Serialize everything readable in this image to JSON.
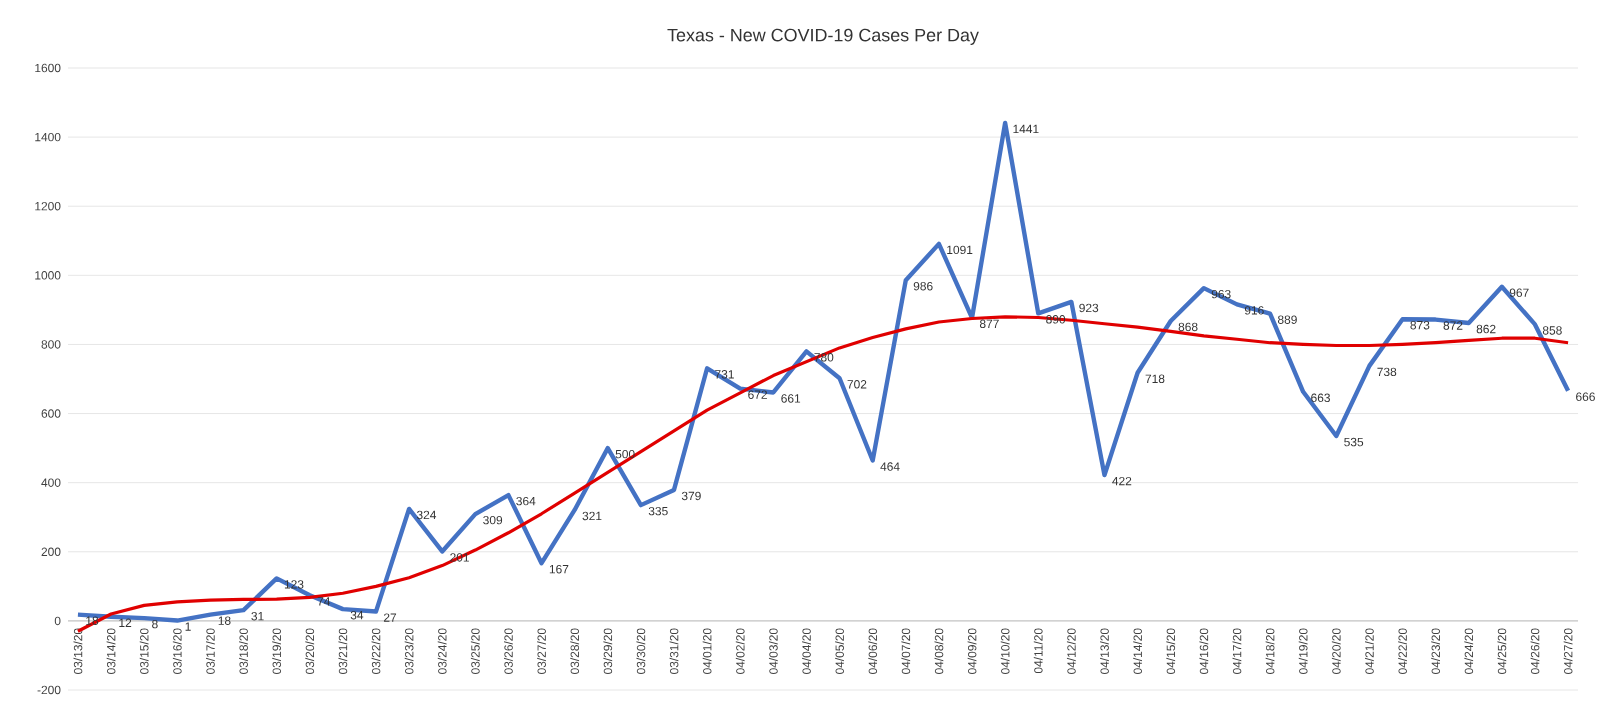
{
  "chart_data": {
    "type": "line",
    "title": "Texas - New COVID-19 Cases Per Day",
    "categories": [
      "03/13/20",
      "03/14/20",
      "03/15/20",
      "03/16/20",
      "03/17/20",
      "03/18/20",
      "03/19/20",
      "03/20/20",
      "03/21/20",
      "03/22/20",
      "03/23/20",
      "03/24/20",
      "03/25/20",
      "03/26/20",
      "03/27/20",
      "03/28/20",
      "03/29/20",
      "03/30/20",
      "03/31/20",
      "04/01/20",
      "04/02/20",
      "04/03/20",
      "04/04/20",
      "04/05/20",
      "04/06/20",
      "04/07/20",
      "04/08/20",
      "04/09/20",
      "04/10/20",
      "04/11/20",
      "04/12/20",
      "04/13/20",
      "04/14/20",
      "04/15/20",
      "04/16/20",
      "04/17/20",
      "04/18/20",
      "04/19/20",
      "04/20/20",
      "04/21/20",
      "04/22/20",
      "04/23/20",
      "04/24/20",
      "04/25/20",
      "04/26/20",
      "04/27/20"
    ],
    "series": [
      {
        "color": "#4472c4",
        "data_labels": true,
        "values": [
          18,
          12,
          8,
          1,
          18,
          31,
          123,
          74,
          34,
          27,
          324,
          201,
          309,
          364,
          167,
          321,
          500,
          335,
          379,
          731,
          672,
          661,
          780,
          702,
          464,
          986,
          1091,
          877,
          1441,
          890,
          923,
          422,
          718,
          868,
          963,
          916,
          889,
          663,
          535,
          738,
          873,
          872,
          862,
          967,
          858,
          666
        ]
      },
      {
        "color": "#e00000",
        "values": [
          -30,
          20,
          45,
          55,
          60,
          62,
          63,
          68,
          80,
          100,
          125,
          160,
          205,
          255,
          310,
          370,
          430,
          490,
          550,
          610,
          660,
          710,
          750,
          790,
          820,
          845,
          865,
          875,
          880,
          878,
          870,
          860,
          850,
          838,
          825,
          815,
          805,
          800,
          797,
          797,
          800,
          805,
          812,
          818,
          818,
          805
        ]
      }
    ],
    "ylim": [
      -200,
      1600
    ],
    "yticks": [
      -200,
      0,
      200,
      400,
      600,
      800,
      1000,
      1200,
      1400,
      1600
    ],
    "grid": "y",
    "line_style": "solid",
    "marker": "none"
  }
}
